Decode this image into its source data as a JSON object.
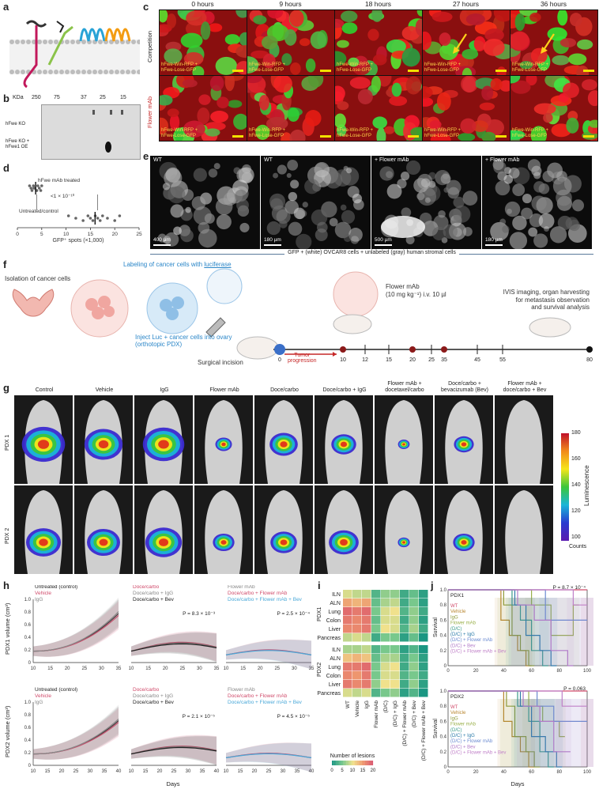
{
  "panel_letters": [
    "a",
    "b",
    "c",
    "d",
    "e",
    "f",
    "g",
    "h",
    "i",
    "j"
  ],
  "panel_b": {
    "kda_label": "KDa",
    "kda_ticks": [
      "250",
      "75",
      "37",
      "25",
      "15"
    ],
    "rows": [
      "hFwe KO",
      "hFwe KO +\nhFwe1 OE"
    ]
  },
  "panel_c": {
    "timepoints": [
      "0 hours",
      "9 hours",
      "18 hours",
      "27 hours",
      "36 hours"
    ],
    "row_labels": [
      "Competition",
      "Flower mAb"
    ],
    "caption": "hFwe-Win-RFP +\nhFwe-Lose-GFP"
  },
  "panel_d": {
    "label_treated": "hFwe mAb treated",
    "label_untreated": "Untreated/control",
    "pvalue": "<1 × 10⁻¹⁰",
    "xlabel": "GFP⁺ spots (×1,000)",
    "x_ticks": [
      "0",
      "5",
      "10",
      "15",
      "20",
      "25"
    ]
  },
  "panel_e": {
    "tiles": [
      {
        "title": "WT",
        "scale": "400 µm"
      },
      {
        "title": "WT",
        "scale": "180 µm"
      },
      {
        "title": "+ Flower mAb",
        "scale": "500 µm"
      },
      {
        "title": "+ Flower mAb",
        "scale": "180 µm"
      }
    ],
    "footer": "GFP + (white) OVCAR8 cells + unlabeled (gray) human stromal cells"
  },
  "panel_f": {
    "isolation": "Isolation of cancer cells",
    "labeling": "Labeling of cancer cells with ",
    "luciferase": "luciferase",
    "inject": "Inject Luc + cancer cells into ovary\n(orthotopic PDX)",
    "incision": "Surgical incision",
    "tumor": "Tumor\nprogression",
    "flower_dose": "Flower mAb\n(10 mg kg⁻¹) i.v. 10 µl",
    "ivis": "IVIS imaging, organ harvesting\nfor metastasis observation\nand survival analysis",
    "days": [
      "0",
      "10",
      "12",
      "15",
      "20",
      "25",
      "35",
      "45",
      "55",
      "80"
    ]
  },
  "panel_g": {
    "columns": [
      "Control",
      "Vehicle",
      "IgG",
      "Flower mAb",
      "Doce/carbo",
      "Doce/carbo + IgG",
      "Flower mAb +\ndocetaxel/carbo",
      "Doce/carbo +\nbevacizumab (Bev)",
      "Flower mAb +\ndoce/carbo + Bev"
    ],
    "rows": [
      "PDX 1",
      "PDX 2"
    ],
    "colorbar_ticks": [
      "180",
      "160",
      "140",
      "120",
      "100"
    ],
    "colorbar_title": "Luminescence",
    "colorbar_unit": "Counts",
    "signal_pdx1": [
      1.0,
      0.85,
      0.95,
      0.2,
      0.55,
      0.45,
      0.05,
      0.3,
      0.0
    ],
    "signal_pdx2": [
      0.75,
      0.7,
      0.8,
      0.35,
      0.5,
      0.6,
      0.06,
      0.35,
      0.0
    ]
  },
  "panel_h": {
    "ylabel_pdx1": "PDX1 volume (cm³)",
    "ylabel_pdx2": "PDX2 volume (cm³)",
    "xlabel": "Days",
    "groups": [
      {
        "legend": [
          "Untreated (control)",
          "Vehicle",
          "IgG"
        ],
        "colors": [
          "#222222",
          "#d04a6a",
          "#888888"
        ]
      },
      {
        "legend": [
          "Doce/carbo",
          "Doce/carbo + IgG",
          "Doce/carbo + Bev"
        ],
        "colors": [
          "#d04a6a",
          "#888888",
          "#222222"
        ]
      },
      {
        "legend": [
          "Flower mAb",
          "Doce/carbo + Flower mAb",
          "Doce/carbo + Flower mAb + Bev"
        ],
        "colors": [
          "#888888",
          "#d04a6a",
          "#4aa8d8"
        ]
      }
    ],
    "pvals_pdx1": [
      "",
      "P = 8.3 × 10⁻³",
      "P = 2.5 × 10⁻⁴"
    ],
    "pvals_pdx2": [
      "",
      "P = 2.1 × 10⁻⁵",
      "P = 4.5 × 10⁻⁵"
    ],
    "x_ticks": [
      "10",
      "15",
      "20",
      "25",
      "30",
      "35"
    ],
    "x_ticks_pdx2": [
      "10",
      "15",
      "20",
      "25",
      "30",
      "35",
      "40"
    ],
    "y_ticks": [
      "0",
      "0.2",
      "0.4",
      "0.6",
      "0.8",
      "1.0"
    ]
  },
  "panel_i": {
    "rows": [
      "ILN",
      "ALN",
      "Lung",
      "Colon",
      "Liver",
      "Pancreas"
    ],
    "groups": [
      "PDX1",
      "PDX2"
    ],
    "columns": [
      "WT",
      "Vehicle",
      "IgG",
      "Flower mAb",
      "(D/C)",
      "(D/C) + IgG",
      "(D/C) + Flower mAb",
      "(D/C) + Bev",
      "(D/C) + Flower mAb + Bev"
    ],
    "legend_title": "Number of lesions",
    "legend_ticks": [
      "0",
      "5",
      "10",
      "15",
      "20"
    ]
  },
  "panel_j": {
    "ylabel": "Survival",
    "xlabel": "Days",
    "titles": [
      "PDX1",
      "PDX2"
    ],
    "pvals": [
      "P = 8.7 × 10⁻⁴",
      "P = 0.063"
    ],
    "legend": [
      "WT",
      "Vehicle",
      "IgG",
      "Flower mAb",
      "(D/C)",
      "(D/C) + IgG",
      "(D/C) + Flower mAb",
      "(D/C) + Bev",
      "(D/C) + Flower mAb + Bev"
    ],
    "colors": [
      "#d04a6a",
      "#b8862e",
      "#8f9a3a",
      "#9ab04a",
      "#3a9a8a",
      "#2a7aa8",
      "#6a8ad0",
      "#b07ac8",
      "#c080c8"
    ],
    "x_ticks": [
      "0",
      "20",
      "40",
      "60",
      "80",
      "100"
    ],
    "y_ticks": [
      "0",
      "0.2",
      "0.4",
      "0.6",
      "0.8",
      "1.0"
    ]
  },
  "chart_data": [
    {
      "type": "scatter",
      "title": "",
      "xlabel": "GFP⁺ spots (×1,000)",
      "ylabel": "",
      "xlim": [
        0,
        25
      ],
      "series": [
        {
          "name": "hFwe mAb treated",
          "values": [
            2.5,
            2.8,
            3.0,
            3.3,
            3.6,
            3.9,
            4.2,
            4.5,
            4.8,
            5.0,
            3.4,
            4.0
          ]
        },
        {
          "name": "Untreated/control",
          "values": [
            10.5,
            12.0,
            13.5,
            14.5,
            15.0,
            15.5,
            16.0,
            16.5,
            17.0,
            17.5,
            18.5,
            20.0,
            21.0
          ]
        }
      ]
    },
    {
      "type": "heatmap",
      "title": "",
      "rows": [
        "ILN",
        "ALN",
        "Lung",
        "Colon",
        "Liver",
        "Pancreas"
      ],
      "columns": [
        "WT",
        "Vehicle",
        "IgG",
        "Flower mAb",
        "(D/C)",
        "(D/C) + IgG",
        "(D/C) + Flower mAb",
        "(D/C) + Bev",
        "(D/C) + Flower mAb + Bev"
      ],
      "series": [
        {
          "name": "PDX1",
          "values": [
            [
              9,
              8,
              8,
              3,
              6,
              6,
              2,
              4,
              1
            ],
            [
              14,
              13,
              14,
              4,
              7,
              8,
              2,
              5,
              1
            ],
            [
              18,
              17,
              18,
              5,
              9,
              10,
              3,
              6,
              2
            ],
            [
              17,
              16,
              17,
              4,
              9,
              9,
              2,
              6,
              1
            ],
            [
              16,
              16,
              17,
              5,
              10,
              9,
              3,
              7,
              2
            ],
            [
              8,
              9,
              8,
              2,
              5,
              5,
              1,
              4,
              0
            ]
          ]
        },
        {
          "name": "PDX2",
          "values": [
            [
              7,
              7,
              8,
              3,
              5,
              5,
              1,
              3,
              0
            ],
            [
              12,
              13,
              12,
              4,
              7,
              7,
              2,
              5,
              1
            ],
            [
              17,
              17,
              18,
              5,
              9,
              10,
              2,
              6,
              1
            ],
            [
              16,
              15,
              17,
              5,
              9,
              9,
              3,
              5,
              2
            ],
            [
              17,
              16,
              17,
              6,
              10,
              10,
              2,
              6,
              1
            ],
            [
              9,
              8,
              9,
              3,
              5,
              6,
              1,
              3,
              0
            ]
          ]
        }
      ],
      "colorbar": {
        "title": "Number of lesions",
        "range": [
          0,
          20
        ]
      }
    },
    {
      "type": "line",
      "title": "PDX1",
      "xlabel": "Days",
      "ylabel": "Survival",
      "xlim": [
        0,
        100
      ],
      "ylim": [
        0,
        1.0
      ],
      "series": [
        {
          "name": "WT",
          "x": [
            0,
            100
          ],
          "y": [
            1.0,
            1.0
          ]
        },
        {
          "name": "Vehicle",
          "x": [
            0,
            38,
            44,
            50,
            56
          ],
          "y": [
            1.0,
            0.6,
            0.4,
            0.2,
            0.0
          ]
        },
        {
          "name": "IgG",
          "x": [
            0,
            40,
            46,
            52,
            58
          ],
          "y": [
            1.0,
            0.8,
            0.4,
            0.2,
            0.0
          ]
        },
        {
          "name": "Flower mAb",
          "x": [
            0,
            60,
            74,
            90
          ],
          "y": [
            1.0,
            0.8,
            0.4,
            0.8
          ]
        },
        {
          "name": "(D/C)",
          "x": [
            0,
            46,
            52,
            60,
            68
          ],
          "y": [
            1.0,
            0.8,
            0.6,
            0.2,
            0.0
          ]
        },
        {
          "name": "(D/C) + IgG",
          "x": [
            0,
            48,
            56,
            66,
            74
          ],
          "y": [
            1.0,
            0.8,
            0.4,
            0.2,
            0.0
          ]
        },
        {
          "name": "(D/C) + Flower mAb",
          "x": [
            0,
            70,
            100
          ],
          "y": [
            1.0,
            0.6,
            0.6
          ]
        },
        {
          "name": "(D/C) + Bev",
          "x": [
            0,
            50,
            62,
            74,
            86
          ],
          "y": [
            1.0,
            0.8,
            0.6,
            0.2,
            0.0
          ]
        },
        {
          "name": "(D/C) + Flower mAb + Bev",
          "x": [
            0,
            90,
            100
          ],
          "y": [
            1.0,
            0.8,
            0.8
          ]
        }
      ]
    },
    {
      "type": "line",
      "title": "PDX2",
      "xlabel": "Days",
      "ylabel": "Survival",
      "xlim": [
        0,
        100
      ],
      "ylim": [
        0,
        1.0
      ],
      "series": [
        {
          "name": "WT",
          "x": [
            0,
            100
          ],
          "y": [
            1.0,
            1.0
          ]
        },
        {
          "name": "Vehicle",
          "x": [
            0,
            40,
            46,
            52,
            58
          ],
          "y": [
            1.0,
            0.6,
            0.4,
            0.2,
            0.0
          ]
        },
        {
          "name": "IgG",
          "x": [
            0,
            42,
            48,
            56,
            62
          ],
          "y": [
            1.0,
            0.8,
            0.4,
            0.2,
            0.0
          ]
        },
        {
          "name": "Flower mAb",
          "x": [
            0,
            58,
            68,
            80
          ],
          "y": [
            1.0,
            0.8,
            0.6,
            0.4
          ]
        },
        {
          "name": "(D/C)",
          "x": [
            0,
            50,
            58,
            66,
            72
          ],
          "y": [
            1.0,
            0.8,
            0.6,
            0.2,
            0.0
          ]
        },
        {
          "name": "(D/C) + IgG",
          "x": [
            0,
            52,
            60,
            70,
            78
          ],
          "y": [
            1.0,
            0.8,
            0.4,
            0.2,
            0.0
          ]
        },
        {
          "name": "(D/C) + Flower mAb",
          "x": [
            0,
            64,
            76,
            100
          ],
          "y": [
            1.0,
            0.8,
            0.6,
            0.6
          ]
        },
        {
          "name": "(D/C) + Bev",
          "x": [
            0,
            54,
            66,
            76,
            84
          ],
          "y": [
            1.0,
            0.8,
            0.6,
            0.2,
            0.2
          ]
        },
        {
          "name": "(D/C) + Flower mAb + Bev",
          "x": [
            0,
            82,
            100
          ],
          "y": [
            1.0,
            0.8,
            0.8
          ]
        }
      ]
    }
  ]
}
